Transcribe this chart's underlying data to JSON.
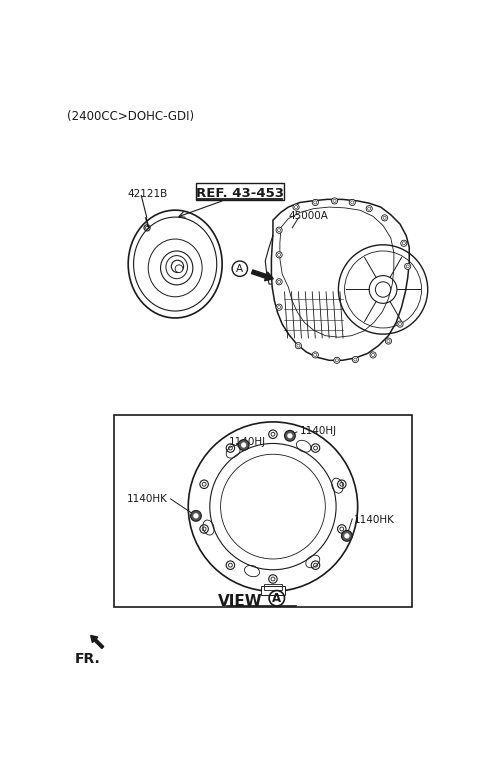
{
  "title_text": "(2400CC>DOHC-GDI)",
  "ref_label": "REF. 43-453",
  "part_label_1": "42121B",
  "part_label_2": "45000A",
  "view_label": "VIEW",
  "view_circle_label": "A",
  "arrow_circle_label": "A",
  "label_1140HJ_right": "1140HJ",
  "label_1140HJ_left": "1140HJ",
  "label_1140HK_left": "1140HK",
  "label_1140HK_right": "1140HK",
  "fr_label": "FR.",
  "bg_color": "#ffffff",
  "line_color": "#1a1a1a"
}
